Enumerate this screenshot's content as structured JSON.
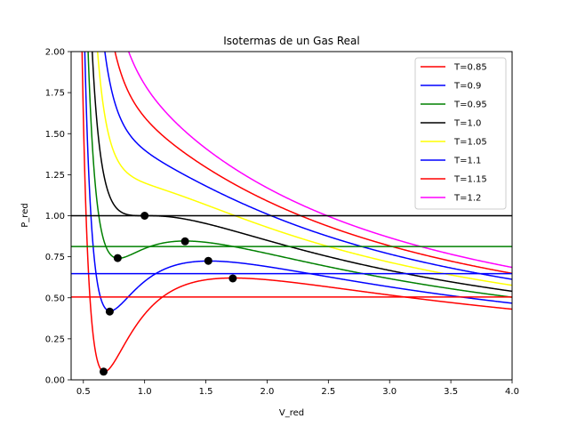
{
  "chart_data": {
    "type": "line",
    "title": "Isotermas de un Gas Real",
    "xlabel": "V_red",
    "ylabel": "P_red",
    "xlim": [
      0.4,
      4.0
    ],
    "ylim": [
      0.0,
      2.0
    ],
    "xticks": [
      "0.5",
      "1.0",
      "1.5",
      "2.0",
      "2.5",
      "3.0",
      "3.5",
      "4.0"
    ],
    "yticks": [
      "0.00",
      "0.25",
      "0.50",
      "0.75",
      "1.00",
      "1.25",
      "1.50",
      "1.75",
      "2.00"
    ],
    "grid": false,
    "legend_position": "top-right",
    "series": [
      {
        "name": "T=0.85",
        "T": 0.85,
        "color": "#ff0000"
      },
      {
        "name": "T=0.9",
        "T": 0.9,
        "color": "#0000ff"
      },
      {
        "name": "T=0.95",
        "T": 0.95,
        "color": "#008000"
      },
      {
        "name": "T=1.0",
        "T": 1.0,
        "color": "#000000"
      },
      {
        "name": "T=1.05",
        "T": 1.05,
        "color": "#ffff00"
      },
      {
        "name": "T=1.1",
        "T": 1.1,
        "color": "#0000ff"
      },
      {
        "name": "T=1.15",
        "T": 1.15,
        "color": "#ff0000"
      },
      {
        "name": "T=1.2",
        "T": 1.2,
        "color": "#ff00ff"
      }
    ],
    "horizontal_lines": [
      {
        "y": 0.505,
        "color": "#ff0000"
      },
      {
        "y": 0.647,
        "color": "#0000ff"
      },
      {
        "y": 0.812,
        "color": "#008000"
      },
      {
        "y": 1.0,
        "color": "#000000"
      }
    ],
    "extrema_points": [
      {
        "x": 0.665,
        "y": 0.05
      },
      {
        "x": 1.72,
        "y": 0.618
      },
      {
        "x": 0.715,
        "y": 0.416
      },
      {
        "x": 1.52,
        "y": 0.725
      },
      {
        "x": 0.78,
        "y": 0.742
      },
      {
        "x": 1.33,
        "y": 0.844
      },
      {
        "x": 1.0,
        "y": 1.0
      }
    ]
  }
}
